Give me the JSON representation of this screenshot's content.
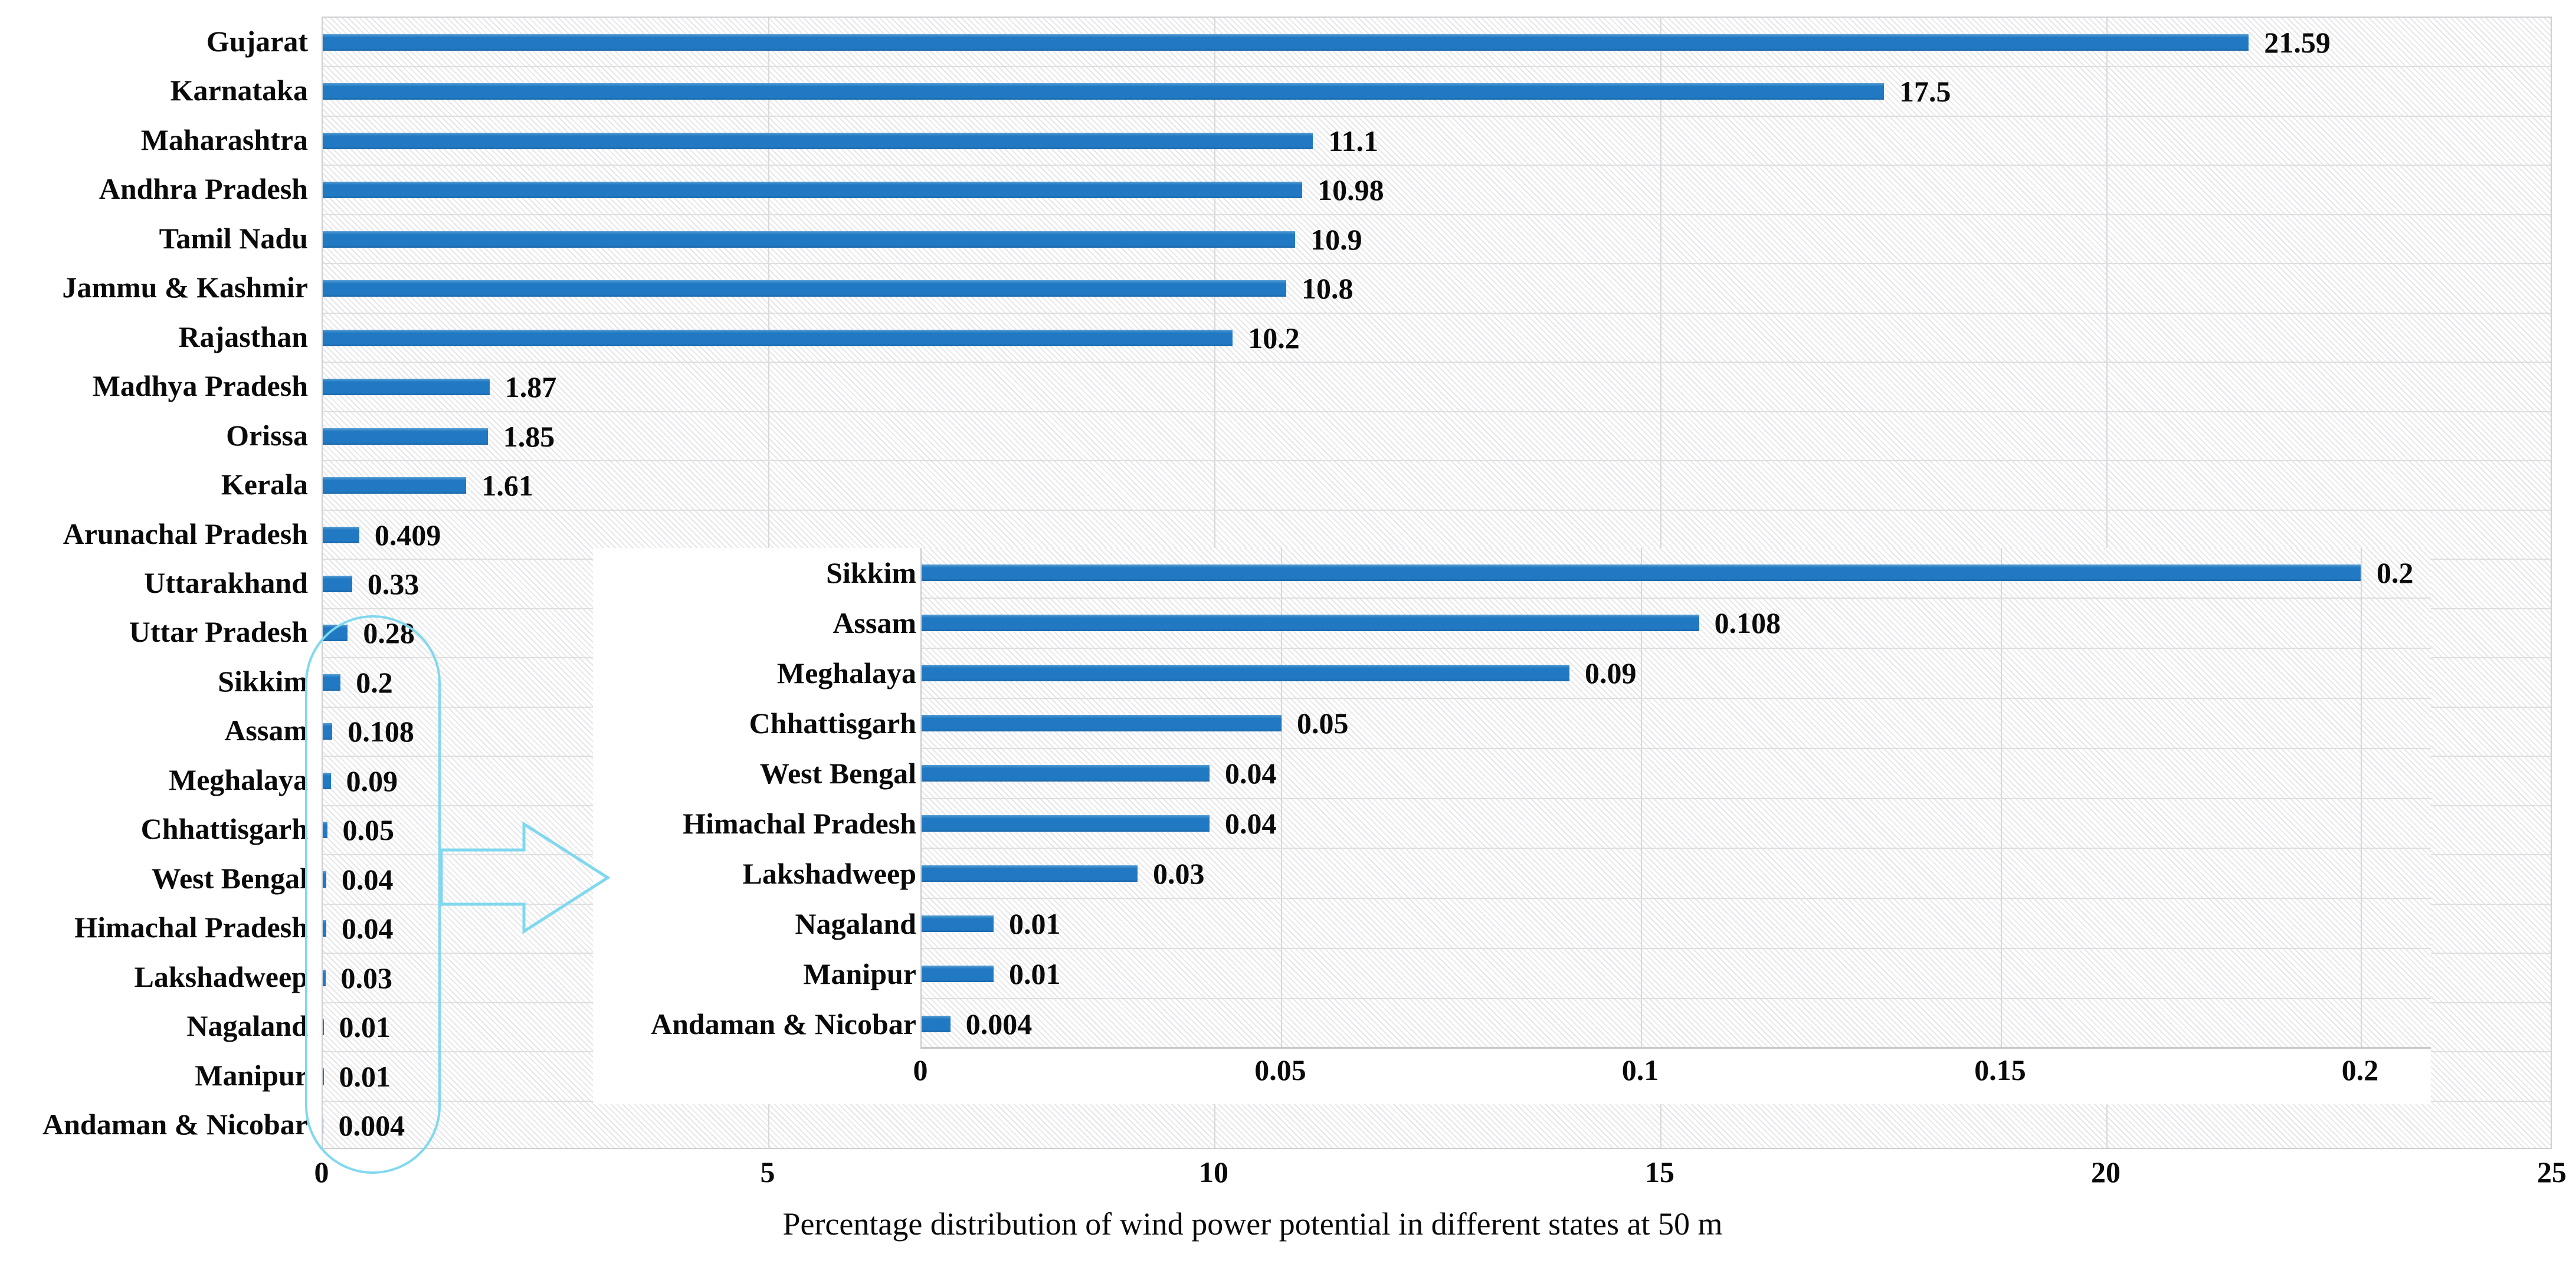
{
  "title": "Percentage distribution of wind power potential in different states at 50 m",
  "colors": {
    "bar": "#2079c2",
    "bar_highlight": "#569dd3",
    "annotation_cyan": "#7fd8ee",
    "grid": "#d8d8dc",
    "hatch_line": "#e6e6e9",
    "text": "#0a0a0a"
  },
  "chart_data": [
    {
      "type": "bar",
      "orientation": "horizontal",
      "title": "Percentage distribution of wind power potential in different states at 50 m",
      "xlabel": "Percentage distribution of wind power potential in different states at 50 m",
      "ylabel": "",
      "grid": true,
      "xlim": [
        0,
        25
      ],
      "xticks": [
        0,
        5,
        10,
        15,
        20,
        25
      ],
      "xtick_labels": [
        "0",
        "5",
        "10",
        "15",
        "20",
        "25"
      ],
      "categories": [
        "Gujarat",
        "Karnataka",
        "Maharashtra",
        "Andhra Pradesh",
        "Tamil Nadu",
        "Jammu & Kashmir",
        "Rajasthan",
        "Madhya Pradesh",
        "Orissa",
        "Kerala",
        "Arunachal Pradesh",
        "Uttarakhand",
        "Uttar Pradesh",
        "Sikkim",
        "Assam",
        "Meghalaya",
        "Chhattisgarh",
        "West Bengal",
        "Himachal Pradesh",
        "Lakshadweep",
        "Nagaland",
        "Manipur",
        "Andaman & Nicobar"
      ],
      "values": [
        21.59,
        17.5,
        11.1,
        10.98,
        10.9,
        10.8,
        10.2,
        1.87,
        1.85,
        1.61,
        0.409,
        0.33,
        0.28,
        0.2,
        0.108,
        0.09,
        0.05,
        0.04,
        0.04,
        0.03,
        0.01,
        0.01,
        0.004
      ],
      "value_labels": [
        "21.59",
        "17.5",
        "11.1",
        "10.98",
        "10.9",
        "10.8",
        "10.2",
        "1.87",
        "1.85",
        "1.61",
        "0.409",
        "0.33",
        "0.28",
        "0.2",
        "0.108",
        "0.09",
        "0.05",
        "0.04",
        "0.04",
        "0.03",
        "0.01",
        "0.01",
        "0.004"
      ]
    },
    {
      "type": "bar",
      "orientation": "horizontal",
      "role": "inset zoom of small-value states",
      "grid": true,
      "xlim": [
        0,
        0.2
      ],
      "xticks": [
        0,
        0.05,
        0.1,
        0.15,
        0.2
      ],
      "xtick_labels": [
        "0",
        "0.05",
        "0.1",
        "0.15",
        "0.2"
      ],
      "categories": [
        "Sikkim",
        "Assam",
        "Meghalaya",
        "Chhattisgarh",
        "West Bengal",
        "Himachal Pradesh",
        "Lakshadweep",
        "Nagaland",
        "Manipur",
        "Andaman & Nicobar"
      ],
      "values": [
        0.2,
        0.108,
        0.09,
        0.05,
        0.04,
        0.04,
        0.03,
        0.01,
        0.01,
        0.004
      ],
      "value_labels": [
        "0.2",
        "0.108",
        "0.09",
        "0.05",
        "0.04",
        "0.04",
        "0.03",
        "0.01",
        "0.01",
        "0.004"
      ]
    }
  ]
}
